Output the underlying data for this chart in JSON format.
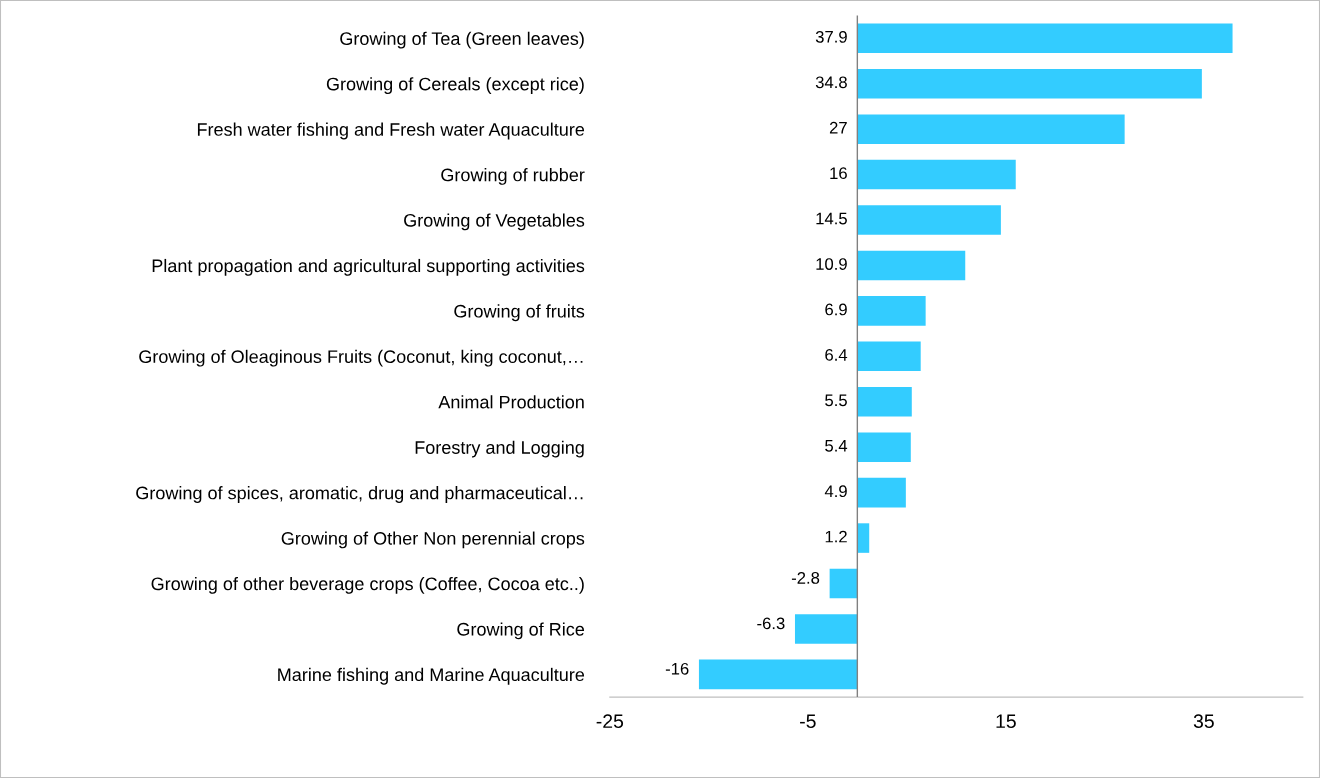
{
  "chart_data": {
    "type": "bar",
    "orientation": "horizontal",
    "categories": [
      "Growing of Tea (Green leaves)",
      "Growing of Cereals (except rice)",
      "Fresh water fishing and Fresh water Aquaculture",
      "Growing of rubber",
      "Growing of Vegetables",
      "Plant propagation and agricultural supporting activities",
      "Growing of fruits",
      "Growing of Oleaginous Fruits (Coconut, king coconut,…",
      "Animal Production",
      "Forestry and Logging",
      "Growing of spices, aromatic, drug and pharmaceutical…",
      "Growing of Other Non perennial crops",
      "Growing of other beverage crops (Coffee, Cocoa etc..)",
      "Growing of Rice",
      "Marine fishing and Marine Aquaculture"
    ],
    "values": [
      37.9,
      34.8,
      27,
      16,
      14.5,
      10.9,
      6.9,
      6.4,
      5.5,
      5.4,
      4.9,
      1.2,
      -2.8,
      -6.3,
      -16
    ],
    "color": "#33ccff",
    "data_labels": true,
    "grid": false,
    "legend": false,
    "xlim": [
      -25,
      45
    ],
    "xticks": [
      -25,
      -5,
      15,
      35
    ]
  }
}
